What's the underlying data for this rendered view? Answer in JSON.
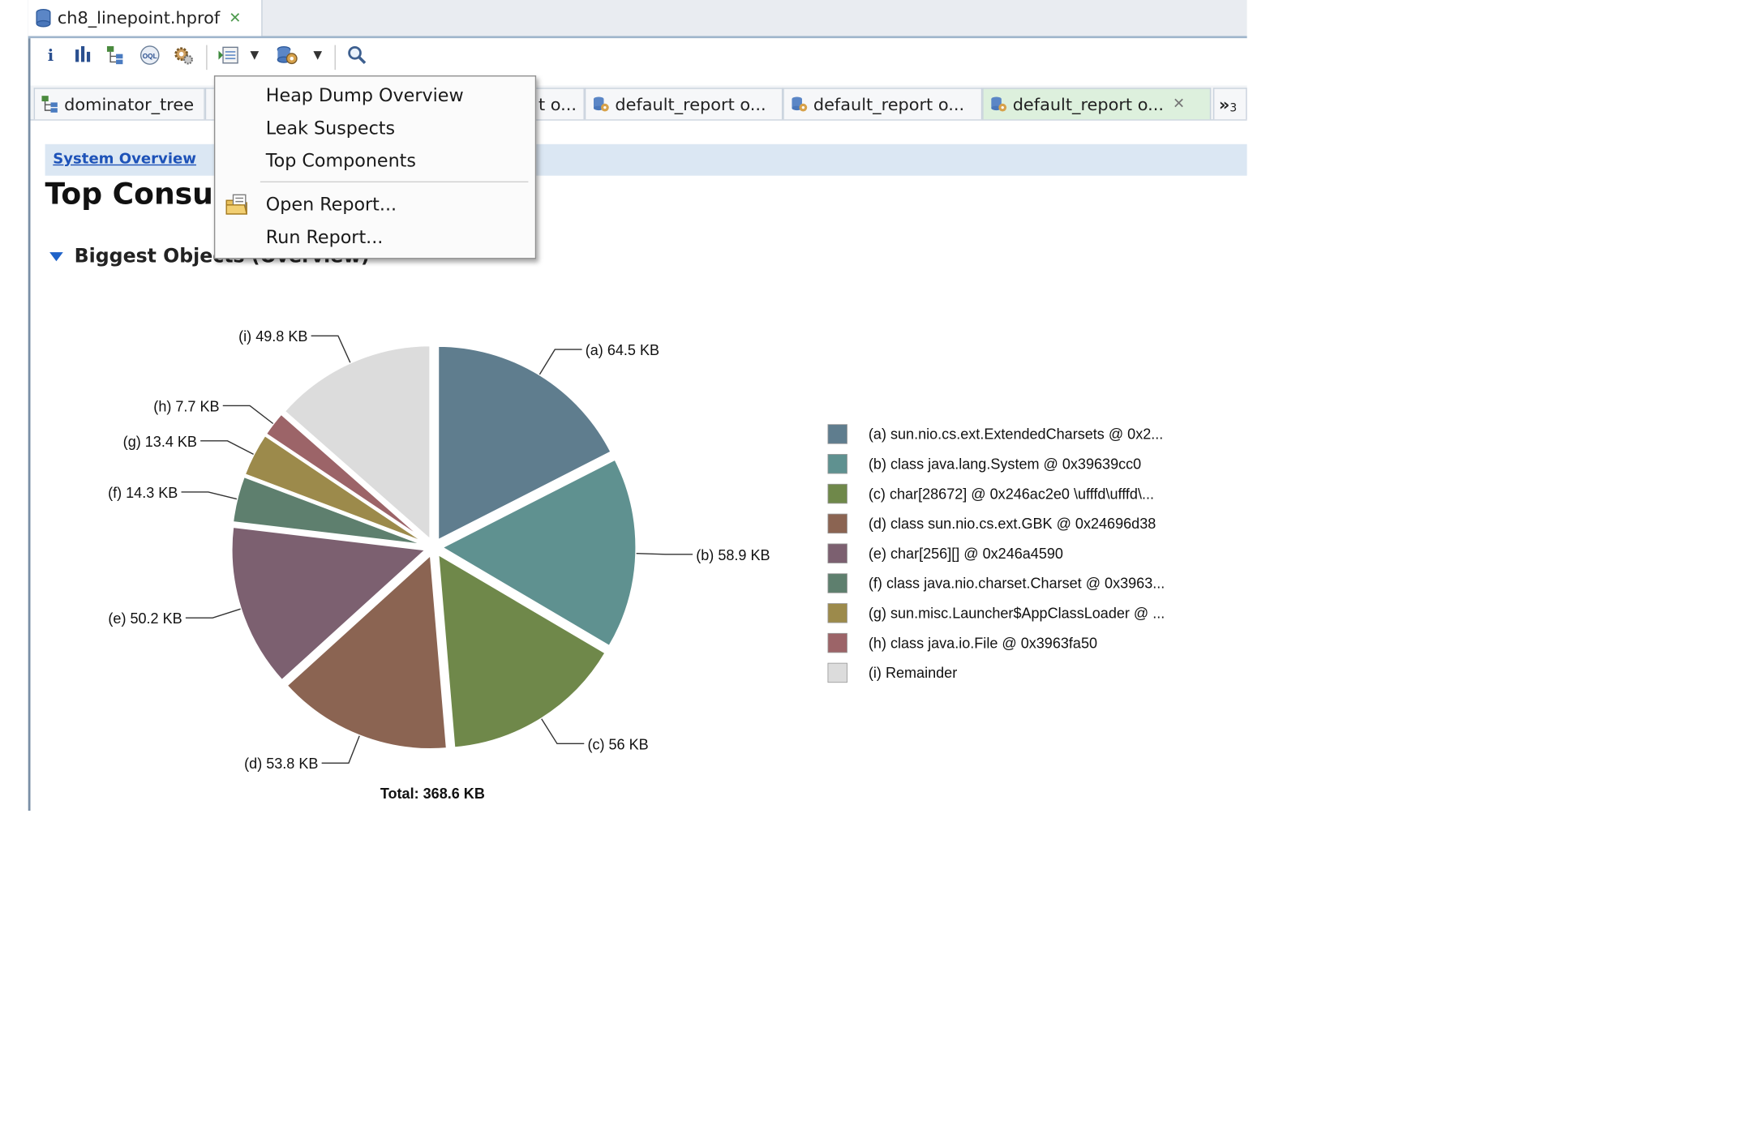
{
  "file_tab": {
    "title": "ch8_linepoint.hprof"
  },
  "editor_tabs": [
    {
      "label": "dominator_tree",
      "icon": "tree-icon"
    },
    {
      "label": "",
      "icon": "tab-icon"
    },
    {
      "label": "t  o...",
      "icon": ""
    },
    {
      "label": "default_report  o...",
      "icon": "report-icon"
    },
    {
      "label": "default_report  o...",
      "icon": "report-icon"
    },
    {
      "label": "default_report  o...",
      "icon": "report-icon",
      "active": true
    }
  ],
  "tab_overflow": {
    "glyph": "»",
    "count": "3"
  },
  "breadcrumb": {
    "link": "System Overview"
  },
  "page": {
    "title": "Top Consu"
  },
  "section": {
    "title": "Biggest Objects (Overview)"
  },
  "menu": {
    "items": [
      "Heap Dump Overview",
      "Leak Suspects",
      "Top Components",
      "Open Report...",
      "Run Report..."
    ]
  },
  "chart_data": {
    "type": "pie",
    "title": "",
    "total_label": "Total: 368.6 KB",
    "unit": "KB",
    "slices": [
      {
        "key": "(a)",
        "value": 64.5,
        "label": "64.5 KB",
        "legend": "sun.nio.cs.ext.ExtendedCharsets @ 0x2...",
        "color": "#5f7d8e"
      },
      {
        "key": "(b)",
        "value": 58.9,
        "label": "58.9 KB",
        "legend": "class java.lang.System @ 0x39639cc0",
        "color": "#5f9190"
      },
      {
        "key": "(c)",
        "value": 56,
        "label": "56 KB",
        "legend": "char[28672] @ 0x246ac2e0  \\ufffd\\ufffd\\...",
        "color": "#6f884a"
      },
      {
        "key": "(d)",
        "value": 53.8,
        "label": "53.8 KB",
        "legend": "class sun.nio.cs.ext.GBK @ 0x24696d38",
        "color": "#8b6452"
      },
      {
        "key": "(e)",
        "value": 50.2,
        "label": "50.2 KB",
        "legend": "char[256][] @ 0x246a4590",
        "color": "#7c6070"
      },
      {
        "key": "(f)",
        "value": 14.3,
        "label": "14.3 KB",
        "legend": "class java.nio.charset.Charset @ 0x3963...",
        "color": "#5e7f6e"
      },
      {
        "key": "(g)",
        "value": 13.4,
        "label": "13.4 KB",
        "legend": "sun.misc.Launcher$AppClassLoader @ ...",
        "color": "#9c8a4b"
      },
      {
        "key": "(h)",
        "value": 7.7,
        "label": "7.7 KB",
        "legend": "class java.io.File @ 0x3963fa50",
        "color": "#9c6468"
      },
      {
        "key": "(i)",
        "value": 49.8,
        "label": "49.8 KB",
        "legend": "Remainder",
        "color": "#dcdcdc"
      }
    ]
  }
}
